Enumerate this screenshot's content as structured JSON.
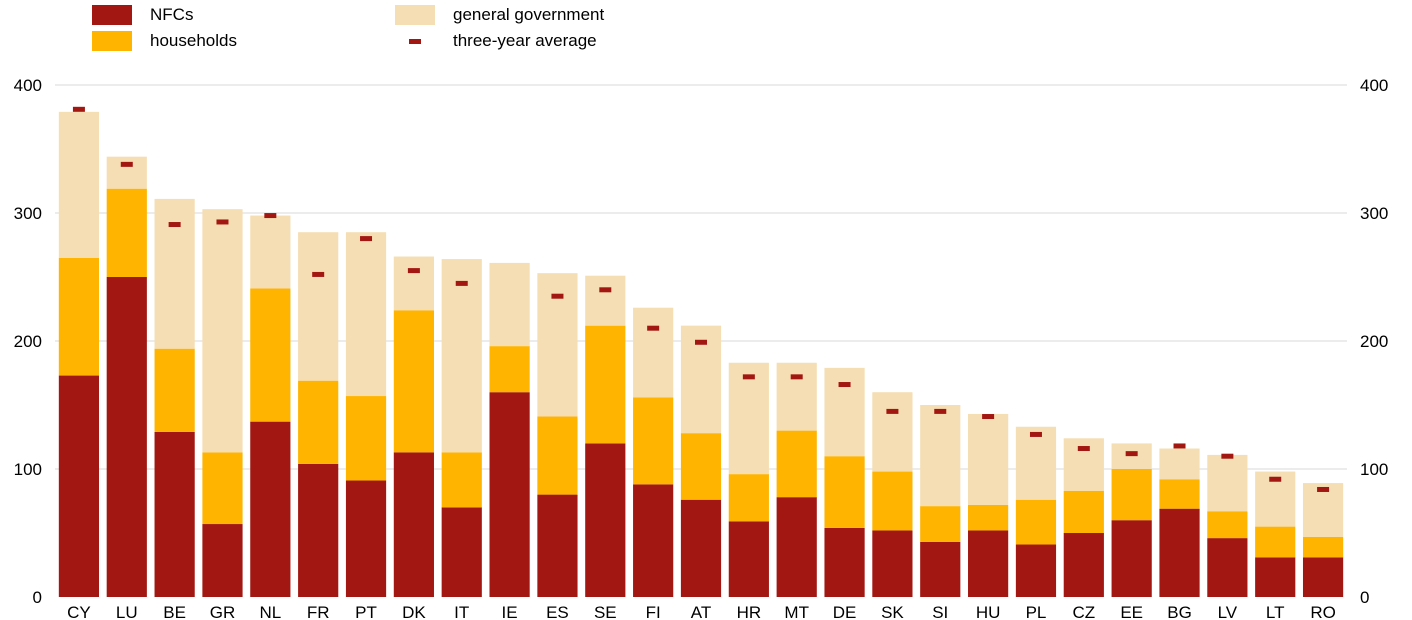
{
  "legend": {
    "nfcs": "NFCs",
    "households": "households",
    "general_government": "general government",
    "three_year_average": "three-year average"
  },
  "colors": {
    "nfcs": "#A31712",
    "households": "#FFB400",
    "general_government": "#F5DEB3",
    "three_year_average": "#A31712",
    "gridline": "#d9d9d9"
  },
  "chart_data": {
    "type": "bar",
    "stacked": true,
    "ylim": [
      0,
      400
    ],
    "yticks": [
      0,
      100,
      200,
      300,
      400
    ],
    "grid": true,
    "legend_position": "top-left",
    "categories": [
      "CY",
      "LU",
      "BE",
      "GR",
      "NL",
      "FR",
      "PT",
      "DK",
      "IT",
      "IE",
      "ES",
      "SE",
      "FI",
      "AT",
      "HR",
      "MT",
      "DE",
      "SK",
      "SI",
      "HU",
      "PL",
      "CZ",
      "EE",
      "BG",
      "LV",
      "LT",
      "RO"
    ],
    "series": [
      {
        "name": "NFCs",
        "values": [
          173,
          250,
          129,
          57,
          137,
          104,
          91,
          113,
          70,
          160,
          80,
          120,
          88,
          76,
          59,
          78,
          54,
          52,
          43,
          52,
          41,
          50,
          60,
          69,
          46,
          31,
          31
        ]
      },
      {
        "name": "households",
        "values": [
          92,
          69,
          65,
          56,
          104,
          65,
          66,
          111,
          43,
          36,
          61,
          92,
          68,
          52,
          37,
          52,
          56,
          46,
          28,
          20,
          35,
          33,
          40,
          23,
          21,
          24,
          16
        ]
      },
      {
        "name": "general government",
        "values": [
          114,
          25,
          117,
          190,
          57,
          116,
          128,
          42,
          151,
          65,
          112,
          39,
          70,
          84,
          87,
          53,
          69,
          62,
          79,
          71,
          57,
          41,
          20,
          24,
          44,
          43,
          42
        ]
      }
    ],
    "three_year_average": {
      "name": "three-year average",
      "values": [
        381,
        338,
        291,
        293,
        298,
        252,
        280,
        255,
        245,
        null,
        235,
        240,
        210,
        199,
        172,
        172,
        166,
        145,
        145,
        141,
        127,
        116,
        112,
        118,
        110,
        92,
        84
      ]
    }
  }
}
